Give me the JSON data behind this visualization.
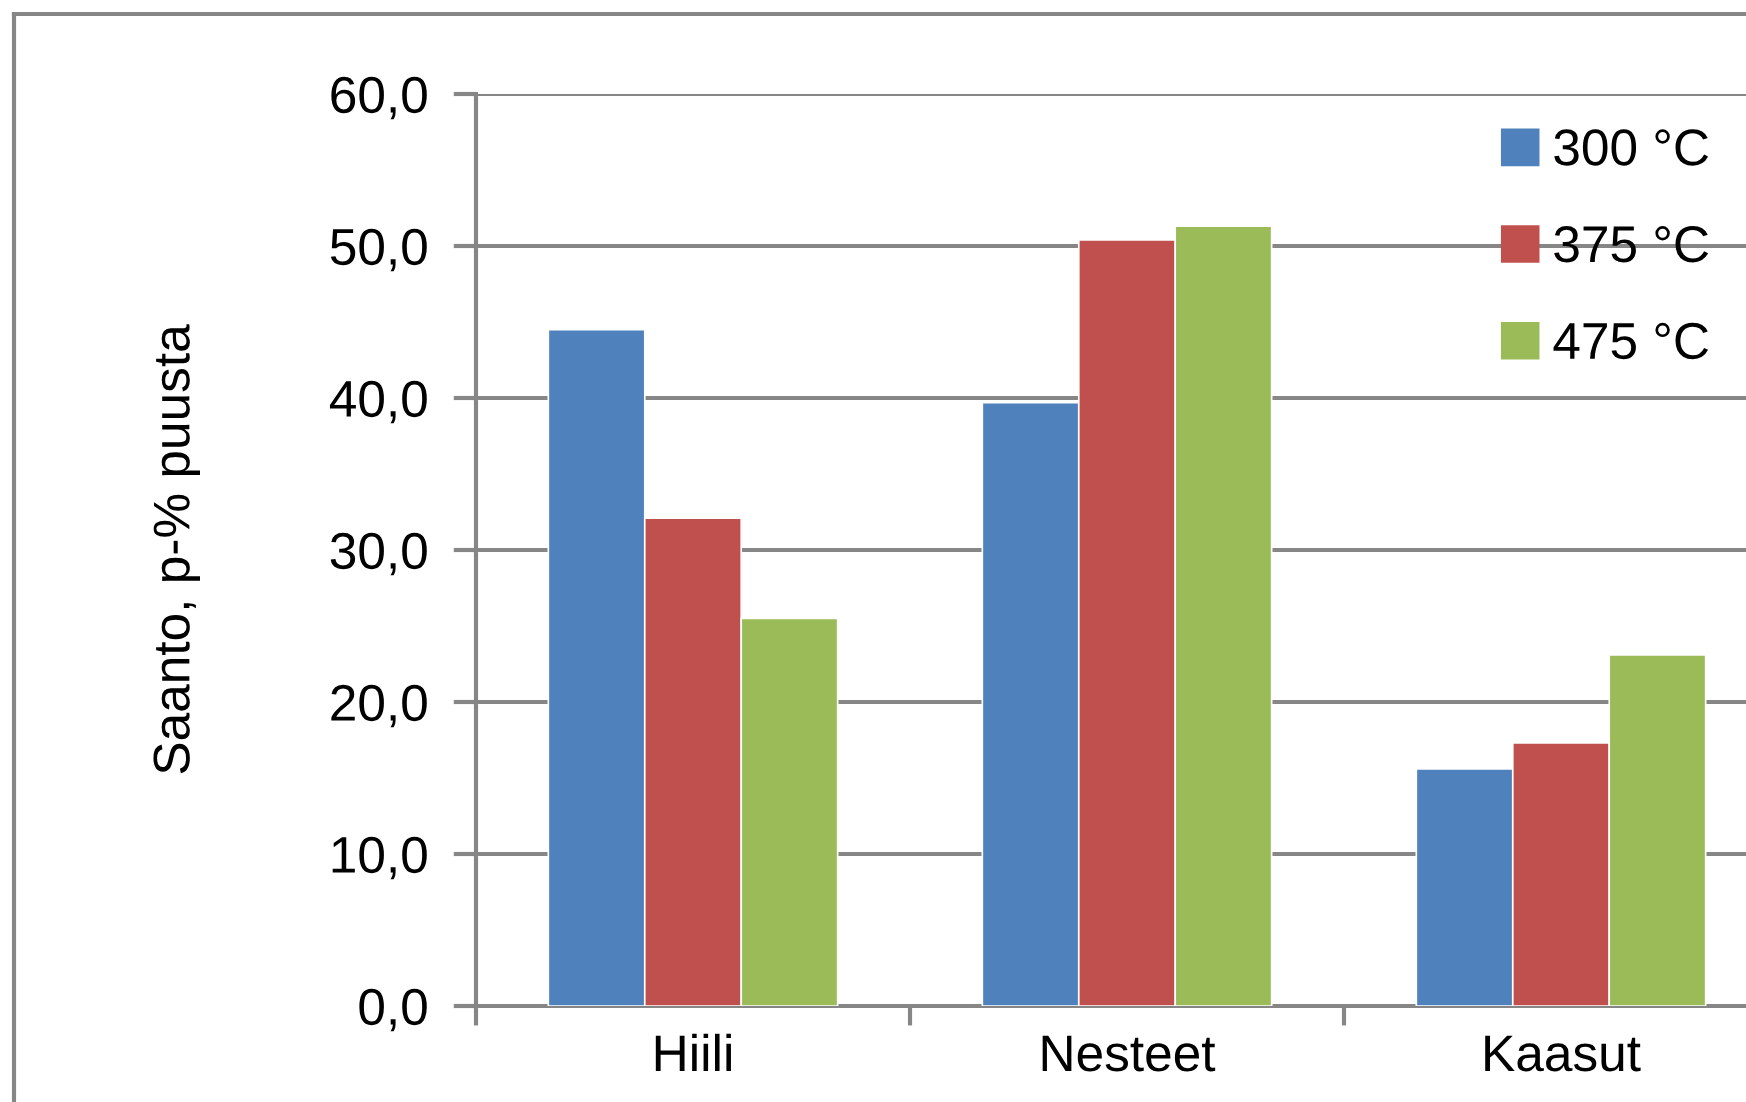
{
  "chart_data": {
    "type": "bar",
    "ylabel": "Saanto, p-% puusta",
    "categories": [
      "Hiili",
      "Nesteet",
      "Kaasut"
    ],
    "series": [
      {
        "name": "300 °C",
        "color": "#4f81bd",
        "values": [
          44.5,
          39.7,
          15.6
        ]
      },
      {
        "name": "375 °C",
        "color": "#c0504d",
        "values": [
          32.1,
          50.4,
          17.3
        ]
      },
      {
        "name": "475 °C",
        "color": "#9bbb59",
        "values": [
          25.5,
          51.3,
          23.1
        ]
      }
    ],
    "ylim": [
      0,
      60
    ],
    "yticks": [
      {
        "value": 0,
        "label": "0,0"
      },
      {
        "value": 10,
        "label": "10,0"
      },
      {
        "value": 20,
        "label": "20,0"
      },
      {
        "value": 30,
        "label": "30,0"
      },
      {
        "value": 40,
        "label": "40,0"
      },
      {
        "value": 50,
        "label": "50,0"
      },
      {
        "value": 60,
        "label": "60,0"
      }
    ],
    "grid": "y",
    "legend": "top right"
  }
}
